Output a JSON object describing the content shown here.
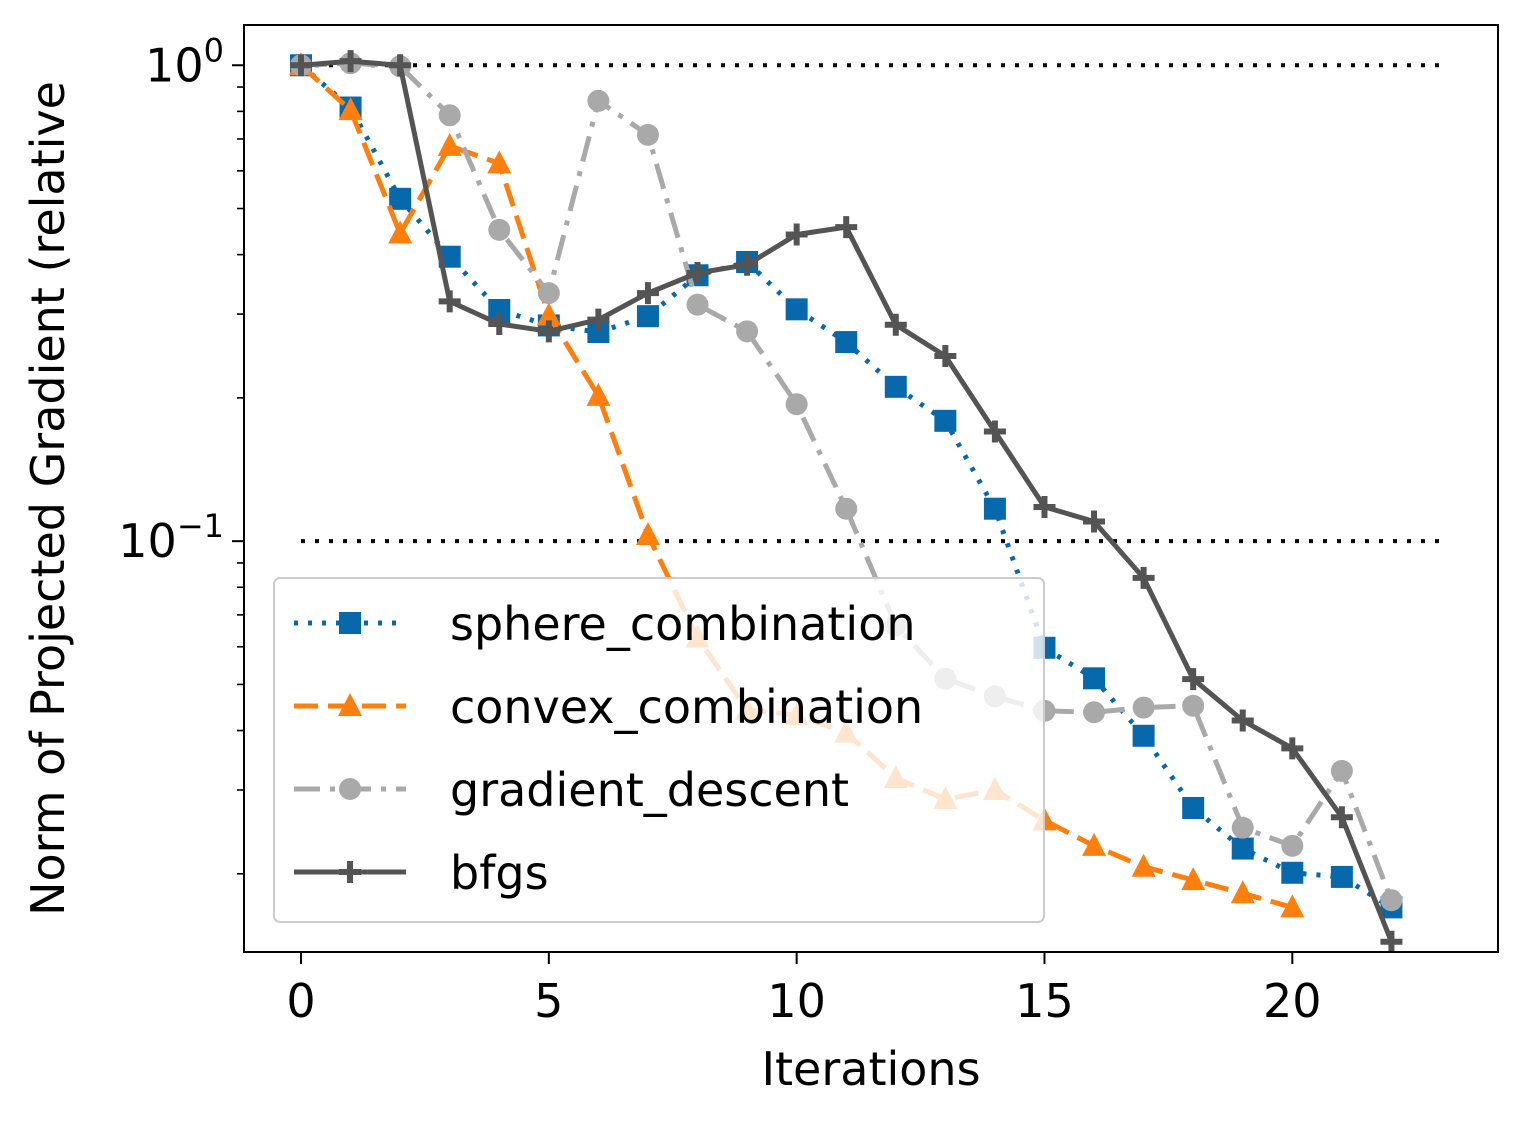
{
  "chart_data": {
    "type": "line",
    "title": "",
    "xlabel": "Iterations",
    "ylabel": "Norm of Projected Gradient (relative",
    "xlim": [
      -1.15,
      24.15
    ],
    "ylim": [
      0.0137,
      1.215
    ],
    "yscale": "log",
    "xticks": [
      0,
      5,
      10,
      15,
      20
    ],
    "yticks": [
      {
        "value": 1.0,
        "base": "10",
        "exp": "0"
      },
      {
        "value": 0.1,
        "base": "10",
        "exp": "−1"
      }
    ],
    "reference_lines": [
      {
        "y": 1.0,
        "x": [
          0,
          23
        ],
        "color": "#000000",
        "style": "dotted"
      },
      {
        "y": 0.1,
        "x": [
          0,
          23
        ],
        "color": "#000000",
        "style": "dotted"
      }
    ],
    "legend_position": "lower-left",
    "series": [
      {
        "name": "sphere_combination",
        "color": "#0868ac",
        "dash": "dotted",
        "marker": "square",
        "x": [
          0,
          1,
          2,
          3,
          4,
          5,
          6,
          7,
          8,
          9,
          10,
          11,
          12,
          13,
          14,
          15,
          16,
          17,
          18,
          19,
          20,
          21,
          22
        ],
        "y": [
          1.0,
          0.815,
          0.524,
          0.396,
          0.306,
          0.284,
          0.275,
          0.297,
          0.362,
          0.386,
          0.307,
          0.262,
          0.211,
          0.179,
          0.117,
          0.0597,
          0.0515,
          0.039,
          0.0275,
          0.0226,
          0.0201,
          0.0197,
          0.017
        ]
      },
      {
        "name": "convex_combination",
        "color": "#ff7f0e",
        "dash": "dashed",
        "marker": "triangle",
        "x": [
          0,
          1,
          2,
          3,
          4,
          5,
          6,
          7,
          8,
          9,
          10,
          11,
          12,
          13,
          14,
          15,
          16,
          17,
          18,
          19,
          20
        ],
        "y": [
          1.0,
          0.805,
          0.443,
          0.677,
          0.622,
          0.298,
          0.202,
          0.103,
          0.0627,
          0.0442,
          0.0431,
          0.0396,
          0.0318,
          0.0287,
          0.03,
          0.0259,
          0.0229,
          0.0207,
          0.0194,
          0.0182,
          0.017
        ]
      },
      {
        "name": "gradient_descent",
        "color": "#a9a9a9",
        "dash": "dashdot",
        "marker": "circle",
        "x": [
          0,
          1,
          2,
          3,
          4,
          5,
          6,
          7,
          8,
          9,
          10,
          11,
          12,
          13,
          14,
          15,
          16,
          17,
          18,
          19,
          20,
          21,
          22
        ],
        "y": [
          1.0,
          1.01,
          0.995,
          0.785,
          0.451,
          0.332,
          0.842,
          0.714,
          0.314,
          0.276,
          0.194,
          0.117,
          0.0665,
          0.0514,
          0.0472,
          0.044,
          0.0437,
          0.0447,
          0.0451,
          0.025,
          0.0229,
          0.0329,
          0.0176
        ]
      },
      {
        "name": "bfgs",
        "color": "#545454",
        "dash": "solid",
        "marker": "plus",
        "x": [
          0,
          1,
          2,
          3,
          4,
          5,
          6,
          7,
          8,
          9,
          10,
          11,
          12,
          13,
          14,
          15,
          16,
          17,
          18,
          19,
          20,
          21,
          22
        ],
        "y": [
          1.0,
          1.02,
          1.0,
          0.319,
          0.286,
          0.276,
          0.292,
          0.332,
          0.366,
          0.381,
          0.441,
          0.457,
          0.285,
          0.245,
          0.17,
          0.118,
          0.11,
          0.0837,
          0.0513,
          0.042,
          0.0367,
          0.0263,
          0.0144
        ]
      }
    ]
  }
}
